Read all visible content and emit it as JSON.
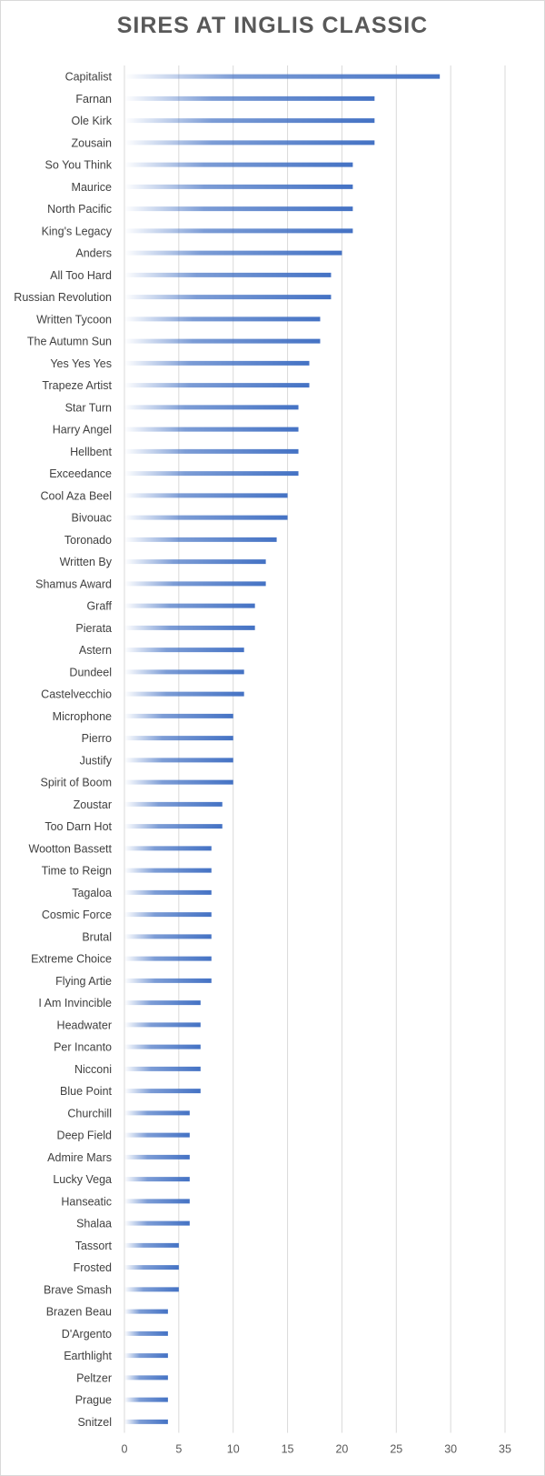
{
  "chart_data": {
    "type": "bar",
    "orientation": "horizontal",
    "title": "SIRES AT INGLIS CLASSIC",
    "categories": [
      "Capitalist",
      "Farnan",
      "Ole Kirk",
      "Zousain",
      "So You Think",
      "Maurice",
      "North Pacific",
      "King's Legacy",
      "Anders",
      "All Too Hard",
      "Russian Revolution",
      "Written Tycoon",
      "The Autumn Sun",
      "Yes Yes Yes",
      "Trapeze Artist",
      "Star Turn",
      "Harry Angel",
      "Hellbent",
      "Exceedance",
      "Cool Aza Beel",
      "Bivouac",
      "Toronado",
      "Written By",
      "Shamus Award",
      "Graff",
      "Pierata",
      "Astern",
      "Dundeel",
      "Castelvecchio",
      "Microphone",
      "Pierro",
      "Justify",
      "Spirit of Boom",
      "Zoustar",
      "Too Darn Hot",
      "Wootton Bassett",
      "Time to Reign",
      "Tagaloa",
      "Cosmic Force",
      "Brutal",
      "Extreme Choice",
      "Flying Artie",
      "I Am Invincible",
      "Headwater",
      "Per Incanto",
      "Nicconi",
      "Blue Point",
      "Churchill",
      "Deep Field",
      "Admire Mars",
      "Lucky Vega",
      "Hanseatic",
      "Shalaa",
      "Tassort",
      "Frosted",
      "Brave Smash",
      "Brazen Beau",
      "D'Argento",
      "Earthlight",
      "Peltzer",
      "Prague",
      "Snitzel"
    ],
    "values": [
      29,
      23,
      23,
      23,
      21,
      21,
      21,
      21,
      20,
      19,
      19,
      18,
      18,
      17,
      17,
      16,
      16,
      16,
      16,
      15,
      15,
      14,
      13,
      13,
      12,
      12,
      11,
      11,
      11,
      10,
      10,
      10,
      10,
      9,
      9,
      8,
      8,
      8,
      8,
      8,
      8,
      8,
      7,
      7,
      7,
      7,
      7,
      6,
      6,
      6,
      6,
      6,
      6,
      5,
      5,
      5,
      4,
      4,
      4,
      4,
      4,
      4
    ],
    "xlim": [
      0,
      35
    ],
    "xticks": [
      "0",
      "5",
      "10",
      "15",
      "20",
      "25",
      "30",
      "35"
    ],
    "grid": "vertical",
    "bar_color": "#4472c4",
    "bar_style": "gradient"
  }
}
